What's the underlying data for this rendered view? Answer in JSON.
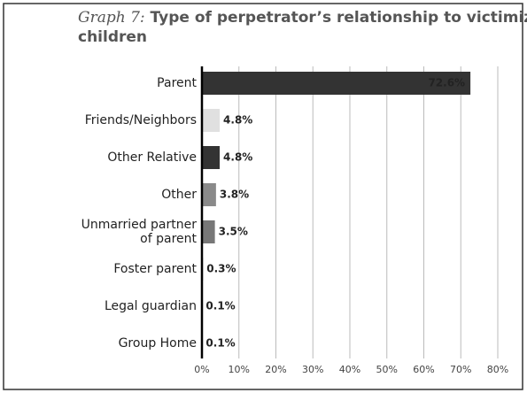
{
  "chart_data": {
    "type": "barh",
    "title_prefix": "Graph 7:",
    "title": [
      "Type of  perpetrator’s relationship to victimized",
      "children"
    ],
    "categories": [
      "Parent",
      "Friends/Neighbors",
      "Other Relative",
      "Other",
      "Unmarried partner of parent",
      "Foster parent",
      "Legal guardian",
      "Group Home"
    ],
    "values": [
      72.6,
      4.8,
      4.8,
      3.8,
      3.5,
      0.3,
      0.1,
      0.1
    ],
    "value_labels": [
      "72.6%",
      "4.8%",
      "4.8%",
      "3.8%",
      "3.5%",
      "0.3%",
      "0.1%",
      "0.1%"
    ],
    "colors": [
      "#333333",
      "#e0e0e0",
      "#333333",
      "#8a8a8a",
      "#777777",
      "#bdbdbd",
      "#222222",
      "#bdbdbd"
    ],
    "xlim": [
      0,
      80
    ],
    "xticks": [
      {
        "value": 0,
        "label": "0%"
      },
      {
        "value": 10,
        "label": "10%"
      },
      {
        "value": 20,
        "label": "20%"
      },
      {
        "value": 30,
        "label": "30%"
      },
      {
        "value": 40,
        "label": "40%"
      },
      {
        "value": 50,
        "label": "50%"
      },
      {
        "value": 60,
        "label": "60%"
      },
      {
        "value": 70,
        "label": "70%"
      },
      {
        "value": 80,
        "label": "80%"
      }
    ],
    "grid": true
  }
}
